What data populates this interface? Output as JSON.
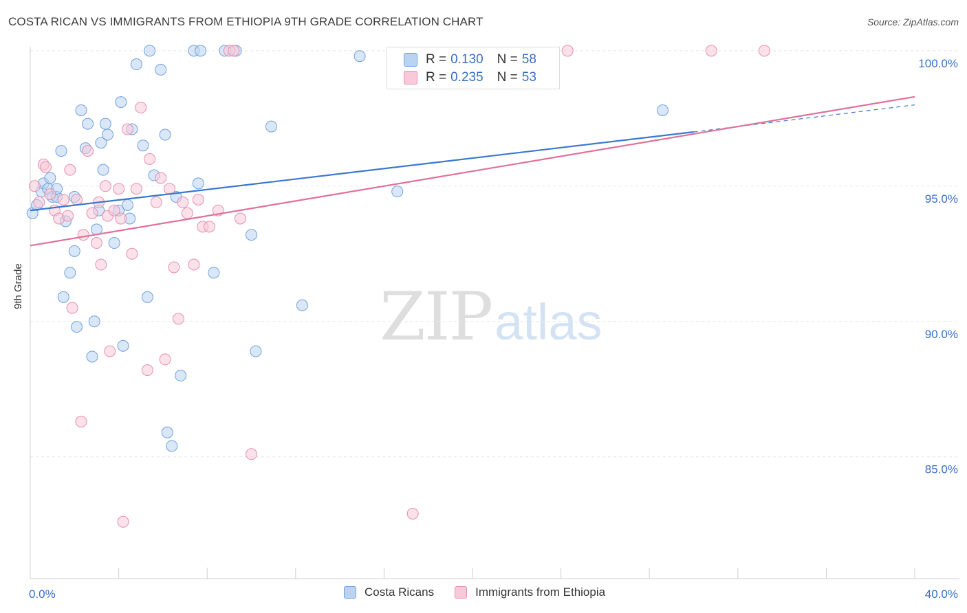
{
  "title": "COSTA RICAN VS IMMIGRANTS FROM ETHIOPIA 9TH GRADE CORRELATION CHART",
  "source": "Source: ZipAtlas.com",
  "watermark": {
    "zip": "ZIP",
    "atlas": "atlas"
  },
  "legend_top": [
    {
      "r_label": "R = ",
      "r_value": "0.130",
      "n_label": "N = ",
      "n_value": "58"
    },
    {
      "r_label": "R = ",
      "r_value": "0.235",
      "n_label": "N = ",
      "n_value": "53"
    }
  ],
  "chart_data": {
    "type": "scatter",
    "ylabel": "9th Grade",
    "x_tick_labels": [
      "0.0%",
      "40.0%"
    ],
    "y_tick_labels": [
      "100.0%",
      "95.0%",
      "90.0%",
      "85.0%"
    ],
    "y_ticks": [
      100,
      95,
      90,
      85
    ],
    "xlim": [
      0,
      40
    ],
    "ylim": [
      80.5,
      100.3
    ],
    "grid": true,
    "legend_position": "bottom",
    "colors": {
      "blue_fill": "#b9d3f3",
      "blue_stroke": "#6fa0dc",
      "blue_line": "#3a78d0",
      "pink_fill": "#f8c9d8",
      "pink_stroke": "#e58fab",
      "pink_line": "#e0709a"
    },
    "series": [
      {
        "name": "Costa Ricans",
        "trend": {
          "x0": 0,
          "y0": 94.1,
          "x1": 30,
          "y1": 97.0,
          "dash_to_x": 40,
          "dash_to_y": 98.0
        },
        "points": [
          [
            0.1,
            94.0
          ],
          [
            0.3,
            94.3
          ],
          [
            0.5,
            94.8
          ],
          [
            0.6,
            95.1
          ],
          [
            0.8,
            94.9
          ],
          [
            0.9,
            95.3
          ],
          [
            1.0,
            94.6
          ],
          [
            1.2,
            94.6
          ],
          [
            1.4,
            96.3
          ],
          [
            1.6,
            93.7
          ],
          [
            1.8,
            91.8
          ],
          [
            2.0,
            92.6
          ],
          [
            2.1,
            89.8
          ],
          [
            2.3,
            97.8
          ],
          [
            2.5,
            96.4
          ],
          [
            2.6,
            97.3
          ],
          [
            2.8,
            88.7
          ],
          [
            2.9,
            90.0
          ],
          [
            3.0,
            93.4
          ],
          [
            3.1,
            94.1
          ],
          [
            3.2,
            96.6
          ],
          [
            3.3,
            95.6
          ],
          [
            3.4,
            97.3
          ],
          [
            3.5,
            96.9
          ],
          [
            3.8,
            92.9
          ],
          [
            4.0,
            94.1
          ],
          [
            4.1,
            98.1
          ],
          [
            4.2,
            89.1
          ],
          [
            4.4,
            94.3
          ],
          [
            4.5,
            93.8
          ],
          [
            4.6,
            97.1
          ],
          [
            4.8,
            99.5
          ],
          [
            5.1,
            96.5
          ],
          [
            5.3,
            90.9
          ],
          [
            5.4,
            100.0
          ],
          [
            5.6,
            95.4
          ],
          [
            5.9,
            99.3
          ],
          [
            6.1,
            96.9
          ],
          [
            6.2,
            85.9
          ],
          [
            6.4,
            85.4
          ],
          [
            6.6,
            94.6
          ],
          [
            6.8,
            88.0
          ],
          [
            7.4,
            100.0
          ],
          [
            7.6,
            95.1
          ],
          [
            7.7,
            100.0
          ],
          [
            8.3,
            91.8
          ],
          [
            8.8,
            100.0
          ],
          [
            9.3,
            100.0
          ],
          [
            10.0,
            93.2
          ],
          [
            10.2,
            88.9
          ],
          [
            10.9,
            97.2
          ],
          [
            12.3,
            90.6
          ],
          [
            14.9,
            99.8
          ],
          [
            16.6,
            94.8
          ],
          [
            1.5,
            90.9
          ],
          [
            2.0,
            94.6
          ],
          [
            1.2,
            94.9
          ],
          [
            28.6,
            97.8
          ]
        ]
      },
      {
        "name": "Immigrants from Ethiopia",
        "trend": {
          "x0": 0,
          "y0": 92.8,
          "x1": 40,
          "y1": 98.3
        },
        "points": [
          [
            0.2,
            95.0
          ],
          [
            0.4,
            94.4
          ],
          [
            0.6,
            95.8
          ],
          [
            0.7,
            95.7
          ],
          [
            0.9,
            94.7
          ],
          [
            1.1,
            94.1
          ],
          [
            1.3,
            93.8
          ],
          [
            1.5,
            94.5
          ],
          [
            1.7,
            93.9
          ],
          [
            1.8,
            95.6
          ],
          [
            1.9,
            90.5
          ],
          [
            2.1,
            94.5
          ],
          [
            2.3,
            86.3
          ],
          [
            2.4,
            93.2
          ],
          [
            2.6,
            96.3
          ],
          [
            2.8,
            94.0
          ],
          [
            3.0,
            92.9
          ],
          [
            3.2,
            92.1
          ],
          [
            3.4,
            95.0
          ],
          [
            3.5,
            93.9
          ],
          [
            3.6,
            88.9
          ],
          [
            3.8,
            94.1
          ],
          [
            4.0,
            94.9
          ],
          [
            4.1,
            93.8
          ],
          [
            4.2,
            82.6
          ],
          [
            4.4,
            97.1
          ],
          [
            4.6,
            92.5
          ],
          [
            4.8,
            94.9
          ],
          [
            5.0,
            97.9
          ],
          [
            5.3,
            88.2
          ],
          [
            5.4,
            96.0
          ],
          [
            5.7,
            94.4
          ],
          [
            5.9,
            95.3
          ],
          [
            6.1,
            88.6
          ],
          [
            6.3,
            94.9
          ],
          [
            6.5,
            92.0
          ],
          [
            6.7,
            90.1
          ],
          [
            6.9,
            94.4
          ],
          [
            7.1,
            94.0
          ],
          [
            7.4,
            92.1
          ],
          [
            7.6,
            94.5
          ],
          [
            7.8,
            93.5
          ],
          [
            8.1,
            93.5
          ],
          [
            8.5,
            94.1
          ],
          [
            9.0,
            100.0
          ],
          [
            9.5,
            93.8
          ],
          [
            10.0,
            85.1
          ],
          [
            17.3,
            82.9
          ],
          [
            24.3,
            100.0
          ],
          [
            30.8,
            100.0
          ],
          [
            33.2,
            100.0
          ],
          [
            9.2,
            100.0
          ],
          [
            3.1,
            94.4
          ]
        ]
      }
    ]
  }
}
